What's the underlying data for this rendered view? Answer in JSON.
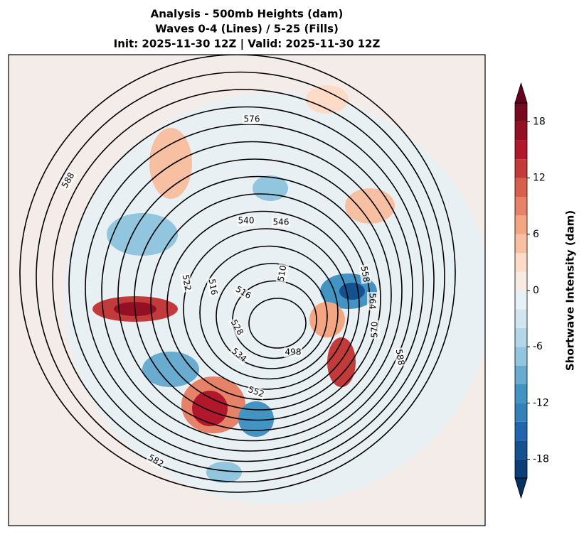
{
  "title": {
    "line1": "Analysis - 500mb Heights (dam)",
    "line2": "Waves 0-4 (Lines) / 5-25 (Fills)",
    "line3": "Init: 2025-11-30 12Z | Valid: 2025-11-30 12Z"
  },
  "contour_labels": [
    576,
    588,
    540,
    546,
    522,
    516,
    516,
    510,
    558,
    564,
    570,
    588,
    528,
    534,
    552,
    582,
    498
  ],
  "colorbar": {
    "label": "Shortwave Intensity (dam)",
    "lim": [
      -20,
      20
    ],
    "ticks": [
      -18,
      -12,
      -6,
      0,
      6,
      12,
      18
    ],
    "levels": [
      -20,
      -18,
      -16,
      -14,
      -12,
      -10,
      -8,
      -6,
      -4,
      -2,
      0,
      2,
      4,
      6,
      8,
      10,
      12,
      14,
      16,
      18,
      20
    ],
    "colors": [
      "#0c3e78",
      "#15508f",
      "#2166ac",
      "#3480b9",
      "#4393c3",
      "#6aacd0",
      "#92c5de",
      "#b3d6e8",
      "#d1e5f0",
      "#e7f0f5",
      "#f7ece4",
      "#fddbc7",
      "#f8c0a2",
      "#f4a582",
      "#e58267",
      "#d6604d",
      "#c23b3a",
      "#b2182b",
      "#931024",
      "#760a21"
    ],
    "under": "#053061",
    "over": "#67001f"
  }
}
